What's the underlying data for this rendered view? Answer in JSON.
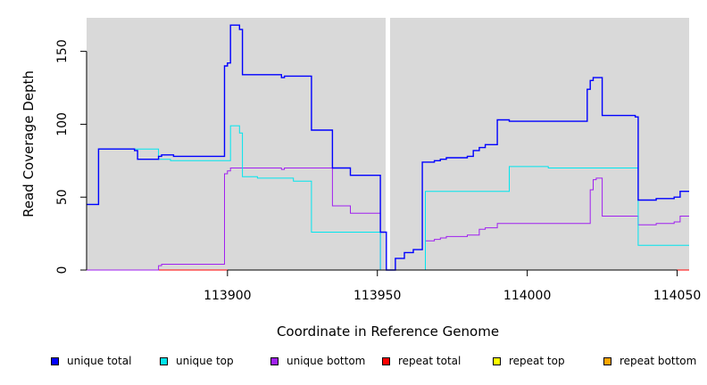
{
  "chart_data": {
    "type": "line",
    "title": "",
    "xlabel": "Coordinate in Reference Genome",
    "ylabel": "Read Coverage Depth",
    "xlim": [
      113853,
      114054
    ],
    "ylim": [
      0,
      173
    ],
    "xticks": [
      113900,
      113950,
      114000,
      114050
    ],
    "xtick_labels": [
      "113900",
      "113950",
      "114000",
      "114050"
    ],
    "yticks": [
      0,
      50,
      100,
      150
    ],
    "ytick_labels": [
      "0",
      "50",
      "100",
      "150"
    ],
    "background": "#d9d9d9",
    "gap_x": 113953.5,
    "series": [
      {
        "name": "unique total",
        "color": "#0000ff",
        "x": [
          113853,
          113857,
          113857,
          113869,
          113869,
          113870,
          113870,
          113877,
          113877,
          113878,
          113878,
          113882,
          113882,
          113899,
          113899,
          113900,
          113900,
          113901,
          113901,
          113904,
          113904,
          113905,
          113905,
          113918,
          113918,
          113919,
          113919,
          113928,
          113928,
          113935,
          113935,
          113941,
          113941,
          113951,
          113951,
          113953,
          113953,
          113956,
          113956,
          113959,
          113959,
          113962,
          113962,
          113965,
          113965,
          113969,
          113969,
          113971,
          113971,
          113973,
          113973,
          113980,
          113980,
          113982,
          113982,
          113984,
          113984,
          113986,
          113986,
          113990,
          113990,
          113994,
          113994,
          114007,
          114007,
          114020,
          114020,
          114021,
          114021,
          114022,
          114022,
          114025,
          114025,
          114036,
          114036,
          114037,
          114037,
          114043,
          114043,
          114049,
          114049,
          114051,
          114051,
          114054
        ],
        "y": [
          45,
          45,
          83,
          83,
          82,
          82,
          76,
          76,
          78,
          78,
          79,
          79,
          78,
          78,
          140,
          140,
          142,
          142,
          168,
          168,
          165,
          165,
          134,
          134,
          132,
          132,
          133,
          133,
          96,
          96,
          70,
          70,
          65,
          65,
          26,
          26,
          0,
          0,
          8,
          8,
          12,
          12,
          14,
          14,
          74,
          74,
          75,
          75,
          76,
          76,
          77,
          77,
          78,
          78,
          82,
          82,
          84,
          84,
          86,
          86,
          103,
          103,
          102,
          102,
          102,
          102,
          124,
          124,
          130,
          130,
          132,
          132,
          106,
          106,
          105,
          105,
          48,
          48,
          49,
          49,
          50,
          50,
          54,
          54
        ]
      },
      {
        "name": "unique top",
        "color": "#00e5ee",
        "x": [
          113853,
          113857,
          113857,
          113877,
          113877,
          113881,
          113881,
          113899,
          113899,
          113901,
          113901,
          113904,
          113904,
          113905,
          113905,
          113910,
          113910,
          113922,
          113922,
          113928,
          113928,
          113951,
          113951,
          113953,
          113953,
          113966,
          113966,
          113994,
          113994,
          114007,
          114007,
          114037,
          114037,
          114054
        ],
        "y": [
          45,
          45,
          83,
          83,
          76,
          76,
          75,
          75,
          75,
          75,
          99,
          99,
          94,
          94,
          64,
          64,
          63,
          63,
          61,
          61,
          26,
          26,
          0,
          0,
          0,
          0,
          54,
          54,
          71,
          71,
          70,
          70,
          17,
          17
        ]
      },
      {
        "name": "unique bottom",
        "color": "#a020f0",
        "x": [
          113853,
          113877,
          113877,
          113878,
          113878,
          113899,
          113899,
          113900,
          113900,
          113901,
          113901,
          113918,
          113918,
          113919,
          113919,
          113935,
          113935,
          113941,
          113941,
          113951,
          113951,
          113953,
          113953,
          113966,
          113966,
          113969,
          113969,
          113971,
          113971,
          113973,
          113973,
          113980,
          113980,
          113984,
          113984,
          113986,
          113986,
          113990,
          113990,
          114021,
          114021,
          114022,
          114022,
          114023,
          114023,
          114025,
          114025,
          114037,
          114037,
          114043,
          114043,
          114049,
          114049,
          114051,
          114051,
          114054
        ],
        "y": [
          0,
          0,
          3,
          3,
          4,
          4,
          66,
          66,
          68,
          68,
          70,
          70,
          69,
          69,
          70,
          70,
          44,
          44,
          39,
          39,
          0,
          0,
          0,
          0,
          20,
          20,
          21,
          21,
          22,
          22,
          23,
          23,
          24,
          24,
          28,
          28,
          29,
          29,
          32,
          32,
          55,
          55,
          62,
          62,
          63,
          63,
          37,
          37,
          31,
          31,
          32,
          32,
          33,
          33,
          37,
          37
        ]
      },
      {
        "name": "repeat total",
        "color": "#ff0000",
        "x": [
          113853,
          114054
        ],
        "y": [
          0,
          0
        ]
      },
      {
        "name": "repeat top",
        "color": "#ffff00",
        "x": [
          113853,
          114054
        ],
        "y": [
          0,
          0
        ]
      },
      {
        "name": "repeat bottom",
        "color": "#ffa500",
        "x": [
          113853,
          114054
        ],
        "y": [
          0,
          0
        ]
      }
    ],
    "legend_position": "bottom"
  },
  "legend": [
    {
      "label": "unique total",
      "color": "#0000ff"
    },
    {
      "label": "unique top",
      "color": "#00e5ee"
    },
    {
      "label": "unique bottom",
      "color": "#a020f0"
    },
    {
      "label": "repeat total",
      "color": "#ff0000"
    },
    {
      "label": "repeat top",
      "color": "#ffff00"
    },
    {
      "label": "repeat bottom",
      "color": "#ffa500"
    }
  ]
}
